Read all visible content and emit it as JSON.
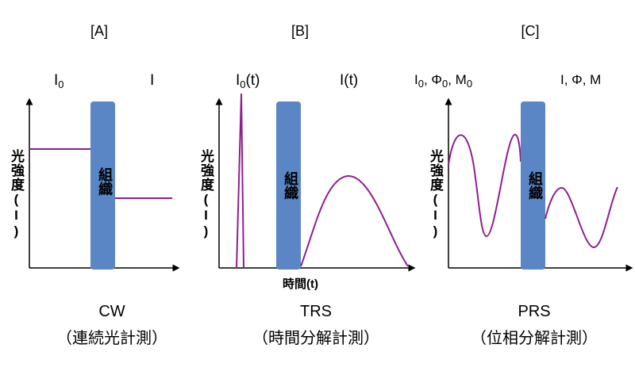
{
  "panels": [
    {
      "label": "[A]",
      "incident": {
        "text": "I",
        "sub": "0"
      },
      "transmitted": {
        "text": "I"
      },
      "ylabel": "光強度(I)",
      "tissue": "組織",
      "caption_main": "CW",
      "caption_sub": "（連続光計測）"
    },
    {
      "label": "[B]",
      "incident": {
        "text": "I",
        "sub": "0",
        "suffix": "(t)"
      },
      "transmitted": {
        "text": "I(t)"
      },
      "ylabel": "光強度(I)",
      "tissue": "組織",
      "xlabel": "時間(t)",
      "caption_main": "TRS",
      "caption_sub": "（時間分解計測）"
    },
    {
      "label": "[C]",
      "incident": {
        "a": "I",
        "a_sub": "0",
        "b": ", Φ",
        "b_sub": "0",
        "c": ", M",
        "c_sub": "0"
      },
      "transmitted": {
        "text": "I, Φ, M"
      },
      "ylabel": "光強度(I)",
      "tissue": "組織",
      "caption_main": "PRS",
      "caption_sub": "（位相分解計測）"
    }
  ],
  "colors": {
    "tissue": "#5b86c5",
    "curve": "#8e1f8f",
    "axis": "#000000"
  }
}
